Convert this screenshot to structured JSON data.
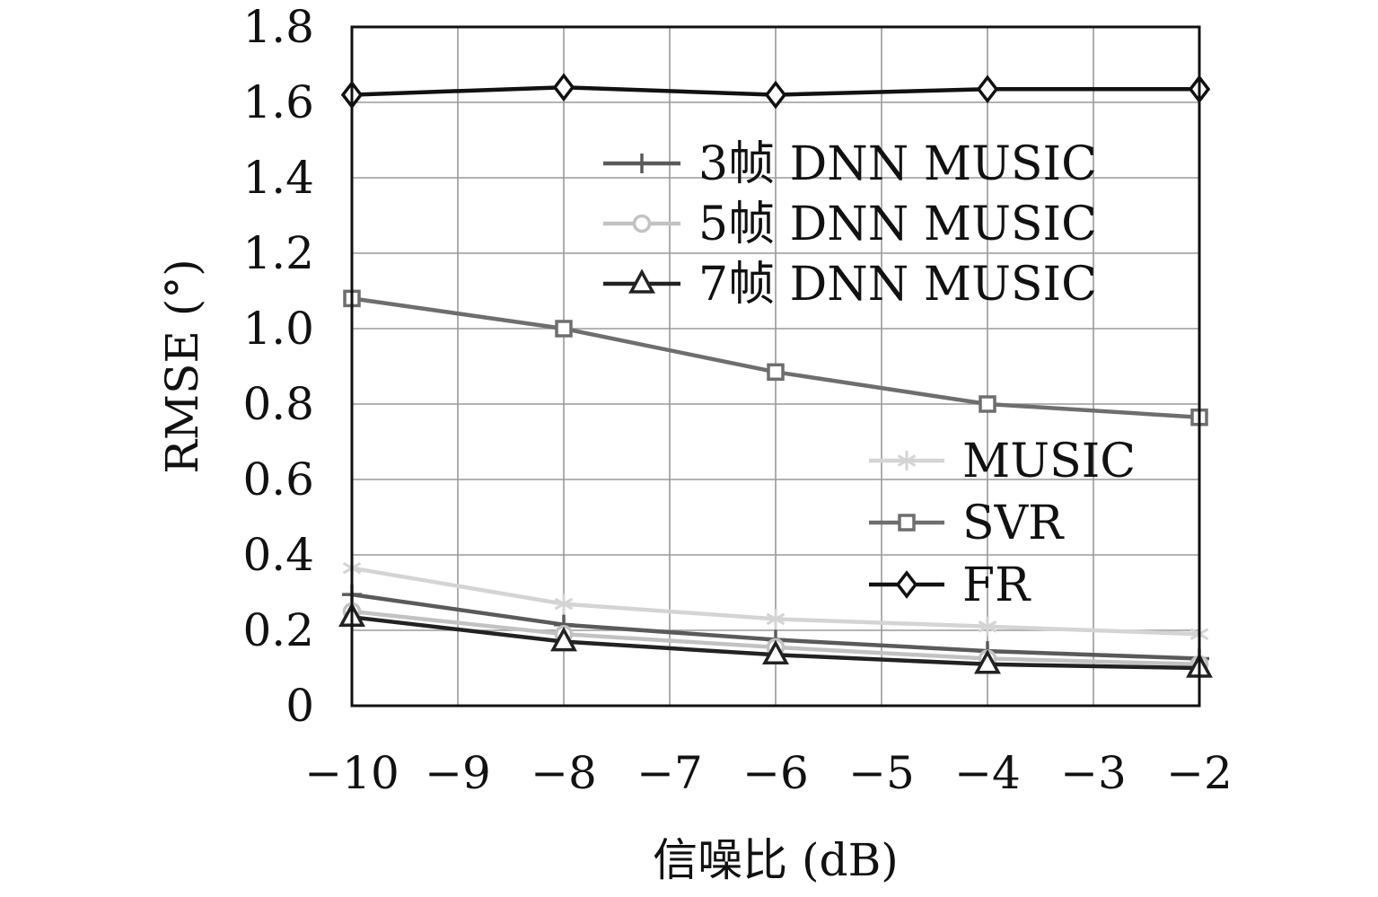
{
  "chart_data": {
    "type": "line",
    "title": "",
    "xlabel": "信噪比 (dB)",
    "ylabel": "RMSE (°)",
    "xlim": [
      -10,
      -2
    ],
    "ylim": [
      0,
      1.8
    ],
    "x_ticks": [
      -10,
      -9,
      -8,
      -7,
      -6,
      -5,
      -4,
      -3,
      -2
    ],
    "x_tick_labels": [
      "−10",
      "−9",
      "−8",
      "−7",
      "−6",
      "−5",
      "−4",
      "−3",
      "−2"
    ],
    "y_ticks": [
      0,
      0.2,
      0.4,
      0.6,
      0.8,
      1.0,
      1.2,
      1.4,
      1.6,
      1.8
    ],
    "y_tick_labels": [
      "0",
      "0.2",
      "0.4",
      "0.6",
      "0.8",
      "1.0",
      "1.2",
      "1.4",
      "1.6",
      "1.8"
    ],
    "grid": true,
    "x": [
      -10,
      -8,
      -6,
      -4,
      -2
    ],
    "series": [
      {
        "name": "FR",
        "values": [
          1.62,
          1.64,
          1.62,
          1.635,
          1.635
        ],
        "color": "#111111",
        "marker": "diamond"
      },
      {
        "name": "SVR",
        "values": [
          1.08,
          1.0,
          0.885,
          0.8,
          0.765
        ],
        "color": "#6e6e6e",
        "marker": "square"
      },
      {
        "name": "MUSIC",
        "values": [
          0.365,
          0.27,
          0.23,
          0.21,
          0.19
        ],
        "color": "#d4d4d4",
        "marker": "star"
      },
      {
        "name": "3帧 DNN MUSIC",
        "values": [
          0.295,
          0.215,
          0.175,
          0.145,
          0.125
        ],
        "color": "#5a5a5a",
        "marker": "plus"
      },
      {
        "name": "5帧 DNN MUSIC",
        "values": [
          0.25,
          0.19,
          0.155,
          0.125,
          0.11
        ],
        "color": "#c2c2c2",
        "marker": "circle"
      },
      {
        "name": "7帧 DNN MUSIC",
        "values": [
          0.235,
          0.17,
          0.135,
          0.11,
          0.1
        ],
        "color": "#222222",
        "marker": "triangle"
      }
    ],
    "legends": [
      {
        "position": "top-right",
        "entries": [
          "3帧 DNN MUSIC",
          "5帧 DNN MUSIC",
          "7帧 DNN MUSIC"
        ]
      },
      {
        "position": "right-middle",
        "entries": [
          "MUSIC",
          "SVR",
          "FR"
        ]
      }
    ]
  }
}
